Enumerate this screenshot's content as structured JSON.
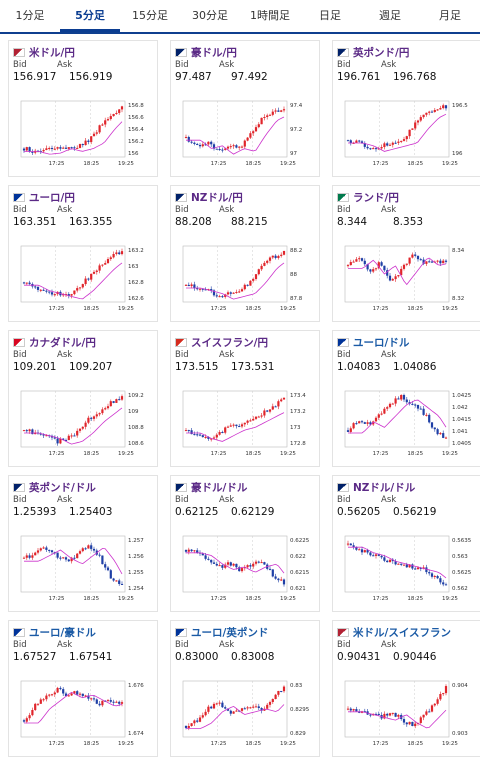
{
  "tabs": [
    "1分足",
    "5分足",
    "15分足",
    "30分足",
    "1時間足",
    "日足",
    "週足",
    "月足"
  ],
  "active_tab": 1,
  "bid_label": "Bid",
  "ask_label": "Ask",
  "colors": {
    "up": "#e0252b",
    "down": "#1f3fa6",
    "ma": "#cc33cc",
    "accent": "#0b3d91"
  },
  "time_labels": [
    "17:25",
    "18:25",
    "19:25"
  ],
  "pairs": [
    {
      "name": "米ドル/円",
      "flag": "us-jp-flag",
      "bid": "156.917",
      "ask": "156.919",
      "ticks": [
        "156.8",
        "156.6",
        "156.4",
        "156.2",
        "156"
      ],
      "trend": [
        0.15,
        0.1,
        0.12,
        0.2,
        0.15,
        0.2,
        0.3,
        0.55,
        0.75,
        0.9
      ],
      "color": "purple"
    },
    {
      "name": "豪ドル/円",
      "flag": "au-jp-flag",
      "bid": "97.487",
      "ask": "97.492",
      "ticks": [
        "97.4",
        "97.2",
        "97"
      ],
      "trend": [
        0.35,
        0.2,
        0.25,
        0.1,
        0.2,
        0.15,
        0.45,
        0.7,
        0.8,
        0.85
      ],
      "color": "purple"
    },
    {
      "name": "英ポンド/円",
      "flag": "gb-jp-flag",
      "bid": "196.761",
      "ask": "196.768",
      "ticks": [
        "196.5",
        "196"
      ],
      "trend": [
        0.3,
        0.25,
        0.15,
        0.2,
        0.25,
        0.3,
        0.55,
        0.75,
        0.85,
        0.9
      ],
      "color": "purple"
    },
    {
      "name": "ユーロ/円",
      "flag": "eu-jp-flag",
      "bid": "163.351",
      "ask": "163.355",
      "ticks": [
        "163.2",
        "163",
        "162.8",
        "162.6"
      ],
      "trend": [
        0.35,
        0.25,
        0.2,
        0.15,
        0.1,
        0.25,
        0.45,
        0.65,
        0.8,
        0.9
      ],
      "color": "purple"
    },
    {
      "name": "NZドル/円",
      "flag": "nz-jp-flag",
      "bid": "88.208",
      "ask": "88.215",
      "ticks": [
        "88.2",
        "88",
        "87.8"
      ],
      "trend": [
        0.3,
        0.25,
        0.2,
        0.1,
        0.15,
        0.2,
        0.4,
        0.65,
        0.8,
        0.9
      ],
      "color": "purple"
    },
    {
      "name": "ランド/円",
      "flag": "za-jp-flag",
      "bid": "8.344",
      "ask": "8.353",
      "ticks": [
        "8.34",
        "8.32"
      ],
      "trend": [
        0.65,
        0.8,
        0.55,
        0.7,
        0.35,
        0.6,
        0.85,
        0.7,
        0.75,
        0.7
      ],
      "color": "purple"
    },
    {
      "name": "カナダドル/円",
      "flag": "ca-jp-flag",
      "bid": "109.201",
      "ask": "109.207",
      "ticks": [
        "109.2",
        "109",
        "108.8",
        "108.6"
      ],
      "trend": [
        0.3,
        0.25,
        0.2,
        0.1,
        0.15,
        0.3,
        0.5,
        0.65,
        0.8,
        0.9
      ],
      "color": "purple"
    },
    {
      "name": "スイスフラン/円",
      "flag": "ch-jp-flag",
      "bid": "173.515",
      "ask": "173.531",
      "ticks": [
        "173.4",
        "173.2",
        "173",
        "172.8"
      ],
      "trend": [
        0.3,
        0.2,
        0.15,
        0.25,
        0.35,
        0.4,
        0.5,
        0.6,
        0.7,
        0.9
      ],
      "color": "purple"
    },
    {
      "name": "ユーロ/ドル",
      "flag": "eu-us-flag",
      "bid": "1.04083",
      "ask": "1.04086",
      "ticks": [
        "1.0425",
        "1.042",
        "1.0415",
        "1.041",
        "1.0405"
      ],
      "trend": [
        0.3,
        0.5,
        0.4,
        0.6,
        0.8,
        0.9,
        0.75,
        0.6,
        0.3,
        0.15
      ],
      "color": "blue"
    },
    {
      "name": "英ポンド/ドル",
      "flag": "gb-us-flag",
      "bid": "1.25393",
      "ask": "1.25403",
      "ticks": [
        "1.257",
        "1.256",
        "1.255",
        "1.254"
      ],
      "trend": [
        0.6,
        0.7,
        0.8,
        0.65,
        0.55,
        0.7,
        0.85,
        0.6,
        0.25,
        0.15
      ],
      "color": "purple"
    },
    {
      "name": "豪ドル/ドル",
      "flag": "au-us-flag",
      "bid": "0.62125",
      "ask": "0.62129",
      "ticks": [
        "0.6225",
        "0.622",
        "0.6215",
        "0.621"
      ],
      "trend": [
        0.75,
        0.7,
        0.55,
        0.45,
        0.5,
        0.4,
        0.5,
        0.55,
        0.3,
        0.15
      ],
      "color": "purple"
    },
    {
      "name": "NZドル/ドル",
      "flag": "nz-us-flag",
      "bid": "0.56205",
      "ask": "0.56219",
      "ticks": [
        "0.5635",
        "0.563",
        "0.5625",
        "0.562"
      ],
      "trend": [
        0.85,
        0.75,
        0.7,
        0.6,
        0.55,
        0.5,
        0.45,
        0.4,
        0.25,
        0.1
      ],
      "color": "purple"
    },
    {
      "name": "ユーロ/豪ドル",
      "flag": "eu-au-flag",
      "bid": "1.67527",
      "ask": "1.67541",
      "ticks": [
        "1.676",
        "1.674"
      ],
      "trend": [
        0.3,
        0.55,
        0.7,
        0.85,
        0.75,
        0.8,
        0.7,
        0.6,
        0.65,
        0.6
      ],
      "color": "blue"
    },
    {
      "name": "ユーロ/英ポンド",
      "flag": "eu-gb-flag",
      "bid": "0.83000",
      "ask": "0.83008",
      "ticks": [
        "0.83",
        "0.8295",
        "0.829"
      ],
      "trend": [
        0.2,
        0.3,
        0.5,
        0.6,
        0.45,
        0.5,
        0.55,
        0.5,
        0.7,
        0.9
      ],
      "color": "blue"
    },
    {
      "name": "米ドル/スイスフラン",
      "flag": "us-ch-flag",
      "bid": "0.90431",
      "ask": "0.90446",
      "ticks": [
        "0.904",
        "0.903"
      ],
      "trend": [
        0.5,
        0.45,
        0.4,
        0.35,
        0.45,
        0.3,
        0.2,
        0.4,
        0.6,
        0.9
      ],
      "color": "blue"
    }
  ]
}
